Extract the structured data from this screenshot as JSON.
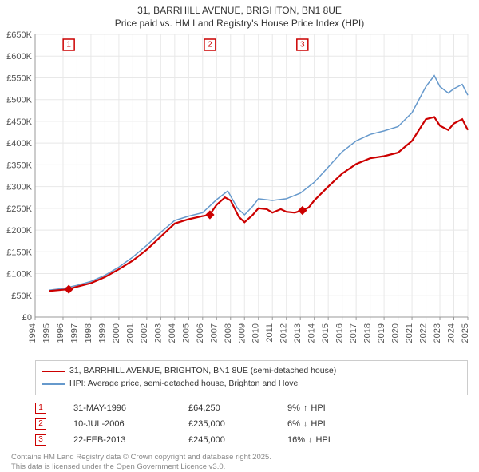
{
  "title_line1": "31, BARRHILL AVENUE, BRIGHTON, BN1 8UE",
  "title_line2": "Price paid vs. HM Land Registry's House Price Index (HPI)",
  "chart": {
    "type": "line",
    "background_color": "#ffffff",
    "grid_color": "#e8e8e8",
    "axis_color": "#999999",
    "x_years": [
      1994,
      1995,
      1996,
      1997,
      1998,
      1999,
      2000,
      2001,
      2002,
      2003,
      2004,
      2005,
      2006,
      2007,
      2008,
      2009,
      2010,
      2011,
      2012,
      2013,
      2014,
      2015,
      2016,
      2017,
      2018,
      2019,
      2020,
      2021,
      2022,
      2023,
      2024,
      2025
    ],
    "y_ticks": [
      0,
      50,
      100,
      150,
      200,
      250,
      300,
      350,
      400,
      450,
      500,
      550,
      600,
      650
    ],
    "y_tick_labels": [
      "£0",
      "£50K",
      "£100K",
      "£150K",
      "£200K",
      "£250K",
      "£300K",
      "£350K",
      "£400K",
      "£450K",
      "£500K",
      "£550K",
      "£600K",
      "£650K"
    ],
    "ylim": [
      0,
      650
    ],
    "xlim": [
      1994,
      2025
    ],
    "tick_fontsize": 11,
    "series": {
      "red": {
        "label": "31, BARRHILL AVENUE, BRIGHTON, BN1 8UE (semi-detached house)",
        "color": "#cc0000",
        "width": 2.2,
        "points": [
          [
            1995.0,
            60
          ],
          [
            1996.4,
            64
          ],
          [
            1997.0,
            70
          ],
          [
            1998.0,
            78
          ],
          [
            1999.0,
            92
          ],
          [
            2000.0,
            110
          ],
          [
            2001.0,
            130
          ],
          [
            2002.0,
            155
          ],
          [
            2003.0,
            185
          ],
          [
            2004.0,
            215
          ],
          [
            2005.0,
            225
          ],
          [
            2006.0,
            232
          ],
          [
            2006.5,
            235
          ],
          [
            2007.0,
            258
          ],
          [
            2007.6,
            275
          ],
          [
            2008.0,
            268
          ],
          [
            2008.6,
            230
          ],
          [
            2009.0,
            218
          ],
          [
            2009.6,
            235
          ],
          [
            2010.0,
            250
          ],
          [
            2010.6,
            248
          ],
          [
            2011.0,
            240
          ],
          [
            2011.6,
            248
          ],
          [
            2012.0,
            242
          ],
          [
            2012.6,
            240
          ],
          [
            2013.1,
            245
          ],
          [
            2013.6,
            252
          ],
          [
            2014.0,
            268
          ],
          [
            2015.0,
            300
          ],
          [
            2016.0,
            330
          ],
          [
            2017.0,
            352
          ],
          [
            2018.0,
            365
          ],
          [
            2019.0,
            370
          ],
          [
            2020.0,
            378
          ],
          [
            2021.0,
            405
          ],
          [
            2022.0,
            455
          ],
          [
            2022.6,
            460
          ],
          [
            2023.0,
            440
          ],
          [
            2023.6,
            430
          ],
          [
            2024.0,
            445
          ],
          [
            2024.6,
            455
          ],
          [
            2025.0,
            430
          ]
        ]
      },
      "blue": {
        "label": "HPI: Average price, semi-detached house, Brighton and Hove",
        "color": "#6699cc",
        "width": 1.5,
        "points": [
          [
            1995.0,
            62
          ],
          [
            1996.0,
            66
          ],
          [
            1997.0,
            73
          ],
          [
            1998.0,
            82
          ],
          [
            1999.0,
            96
          ],
          [
            2000.0,
            115
          ],
          [
            2001.0,
            138
          ],
          [
            2002.0,
            165
          ],
          [
            2003.0,
            195
          ],
          [
            2004.0,
            222
          ],
          [
            2005.0,
            232
          ],
          [
            2006.0,
            240
          ],
          [
            2007.0,
            270
          ],
          [
            2007.8,
            290
          ],
          [
            2008.5,
            250
          ],
          [
            2009.0,
            235
          ],
          [
            2009.6,
            255
          ],
          [
            2010.0,
            272
          ],
          [
            2011.0,
            268
          ],
          [
            2012.0,
            272
          ],
          [
            2013.0,
            285
          ],
          [
            2014.0,
            310
          ],
          [
            2015.0,
            345
          ],
          [
            2016.0,
            380
          ],
          [
            2017.0,
            405
          ],
          [
            2018.0,
            420
          ],
          [
            2019.0,
            428
          ],
          [
            2020.0,
            438
          ],
          [
            2021.0,
            470
          ],
          [
            2022.0,
            530
          ],
          [
            2022.6,
            555
          ],
          [
            2023.0,
            530
          ],
          [
            2023.6,
            515
          ],
          [
            2024.0,
            525
          ],
          [
            2024.6,
            535
          ],
          [
            2025.0,
            510
          ]
        ]
      }
    },
    "sale_markers": [
      {
        "n": "1",
        "year": 1996.41,
        "price": 64
      },
      {
        "n": "2",
        "year": 2006.52,
        "price": 235
      },
      {
        "n": "3",
        "year": 2013.15,
        "price": 245
      }
    ],
    "marker_point_color": "#cc0000",
    "marker_box_fill": "#ffffff"
  },
  "legend": {
    "border_color": "#cccccc",
    "items": [
      {
        "color": "#cc0000",
        "label": "31, BARRHILL AVENUE, BRIGHTON, BN1 8UE (semi-detached house)"
      },
      {
        "color": "#6699cc",
        "label": "HPI: Average price, semi-detached house, Brighton and Hove"
      }
    ]
  },
  "sales": [
    {
      "n": "1",
      "color": "#cc0000",
      "date": "31-MAY-1996",
      "price": "£64,250",
      "diff_pct": "9%",
      "diff_dir": "↑",
      "diff_label": "HPI"
    },
    {
      "n": "2",
      "color": "#cc0000",
      "date": "10-JUL-2006",
      "price": "£235,000",
      "diff_pct": "6%",
      "diff_dir": "↓",
      "diff_label": "HPI"
    },
    {
      "n": "3",
      "color": "#cc0000",
      "date": "22-FEB-2013",
      "price": "£245,000",
      "diff_pct": "16%",
      "diff_dir": "↓",
      "diff_label": "HPI"
    }
  ],
  "footer_line1": "Contains HM Land Registry data © Crown copyright and database right 2025.",
  "footer_line2": "This data is licensed under the Open Government Licence v3.0."
}
